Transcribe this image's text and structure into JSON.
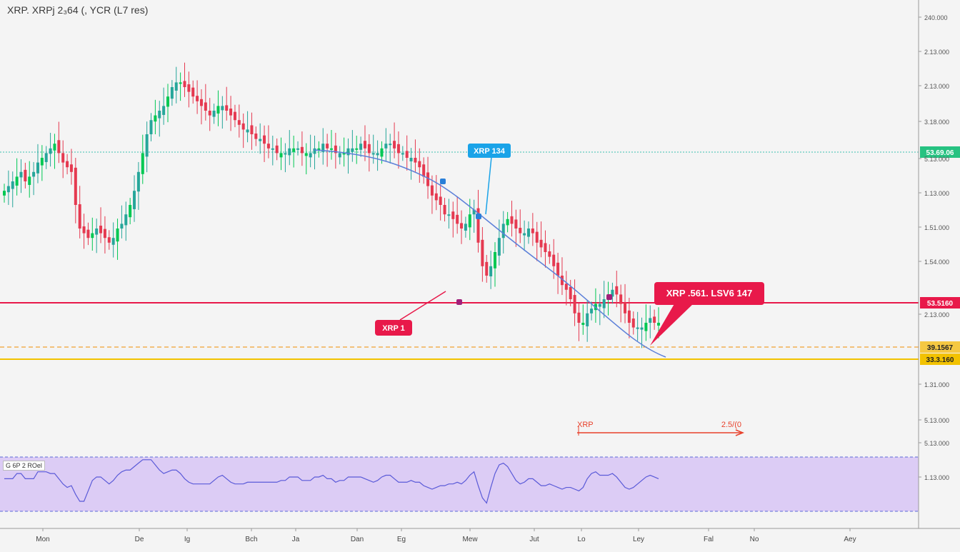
{
  "header": {
    "title": "XRP. XRPj 2₃64 (, YCR (L7 res)"
  },
  "rsi": {
    "title": "G 6P 2 ROel"
  },
  "colors": {
    "up": "#26a69a",
    "up_bright": "#00c853",
    "down": "#e53950",
    "trend": "#5b7fd9",
    "resistance": "#e8194a",
    "support": "#f2c200",
    "dashed": "#f0a030",
    "teal_line": "#3cc0b0",
    "rsi_fill": "#d9c8f5",
    "rsi_line": "#5a5ad8",
    "callout_blue": "#1aa3e8",
    "callout_red": "#e8194a",
    "arrow_red": "#e8402a"
  },
  "chart_data": {
    "type": "candlestick",
    "title": "XRP. XRPj 2₃64 (, YCR (L7 res)",
    "y_axis_labels": [
      "240.000",
      "2.13.000",
      "2.13.000",
      "3.18.000",
      "5.13.000",
      "1.13.000",
      "1.51.000",
      "1.54.000",
      "2.13.000",
      "1.31.000",
      "5.13.000",
      "5.13.000",
      "1.13.000"
    ],
    "x_axis_labels": [
      "Mon",
      "De",
      "Ig",
      "Bch",
      "Ja",
      "Dan",
      "Eg",
      "Mew",
      "Jut",
      "Lo",
      "Ley",
      "Fal",
      "No",
      "Aey"
    ],
    "price_tags": {
      "teal": "53.69.06",
      "red": "53.5160",
      "dashed": "39.1567",
      "yellow": "33.3.160"
    },
    "annotations": {
      "blue_callout": "XRP 134",
      "red_callout_small": "XRP 1",
      "red_callout_big": "XRP .561. LSV6 147",
      "range_left": "XRP",
      "range_right": "2.5/(0"
    },
    "close_series": [
      38,
      39,
      40,
      41,
      42,
      40,
      41,
      42,
      44,
      45,
      46,
      47,
      48,
      46,
      44,
      43,
      42,
      35,
      30,
      29,
      28,
      29,
      30,
      29,
      28,
      27,
      28,
      30,
      31,
      33,
      35,
      38,
      42,
      46,
      50,
      53,
      54,
      55,
      56,
      58,
      60,
      61,
      61,
      60,
      59,
      58,
      57,
      56,
      55,
      54,
      55,
      56,
      56,
      55,
      54,
      53,
      52,
      51,
      51,
      50,
      49,
      49,
      48,
      47,
      47,
      46,
      46,
      46,
      47,
      47,
      47,
      46,
      46,
      46,
      47,
      47,
      48,
      47,
      47,
      46,
      46,
      46,
      47,
      47,
      47,
      48,
      47,
      46,
      46,
      46,
      47,
      48,
      48,
      47,
      46,
      46,
      45,
      45,
      44,
      43,
      41,
      39,
      37,
      36,
      35,
      33,
      33,
      32,
      31,
      30,
      31,
      33,
      34,
      27,
      22,
      20,
      22,
      25,
      28,
      31,
      32,
      31,
      30,
      29,
      29,
      30,
      29,
      27,
      26,
      25,
      24,
      22,
      20,
      18,
      17,
      15,
      12,
      10,
      10,
      12,
      13,
      14,
      14,
      15,
      16,
      17,
      16,
      14,
      12,
      10,
      9,
      9,
      9,
      10,
      11,
      10,
      10
    ]
  }
}
